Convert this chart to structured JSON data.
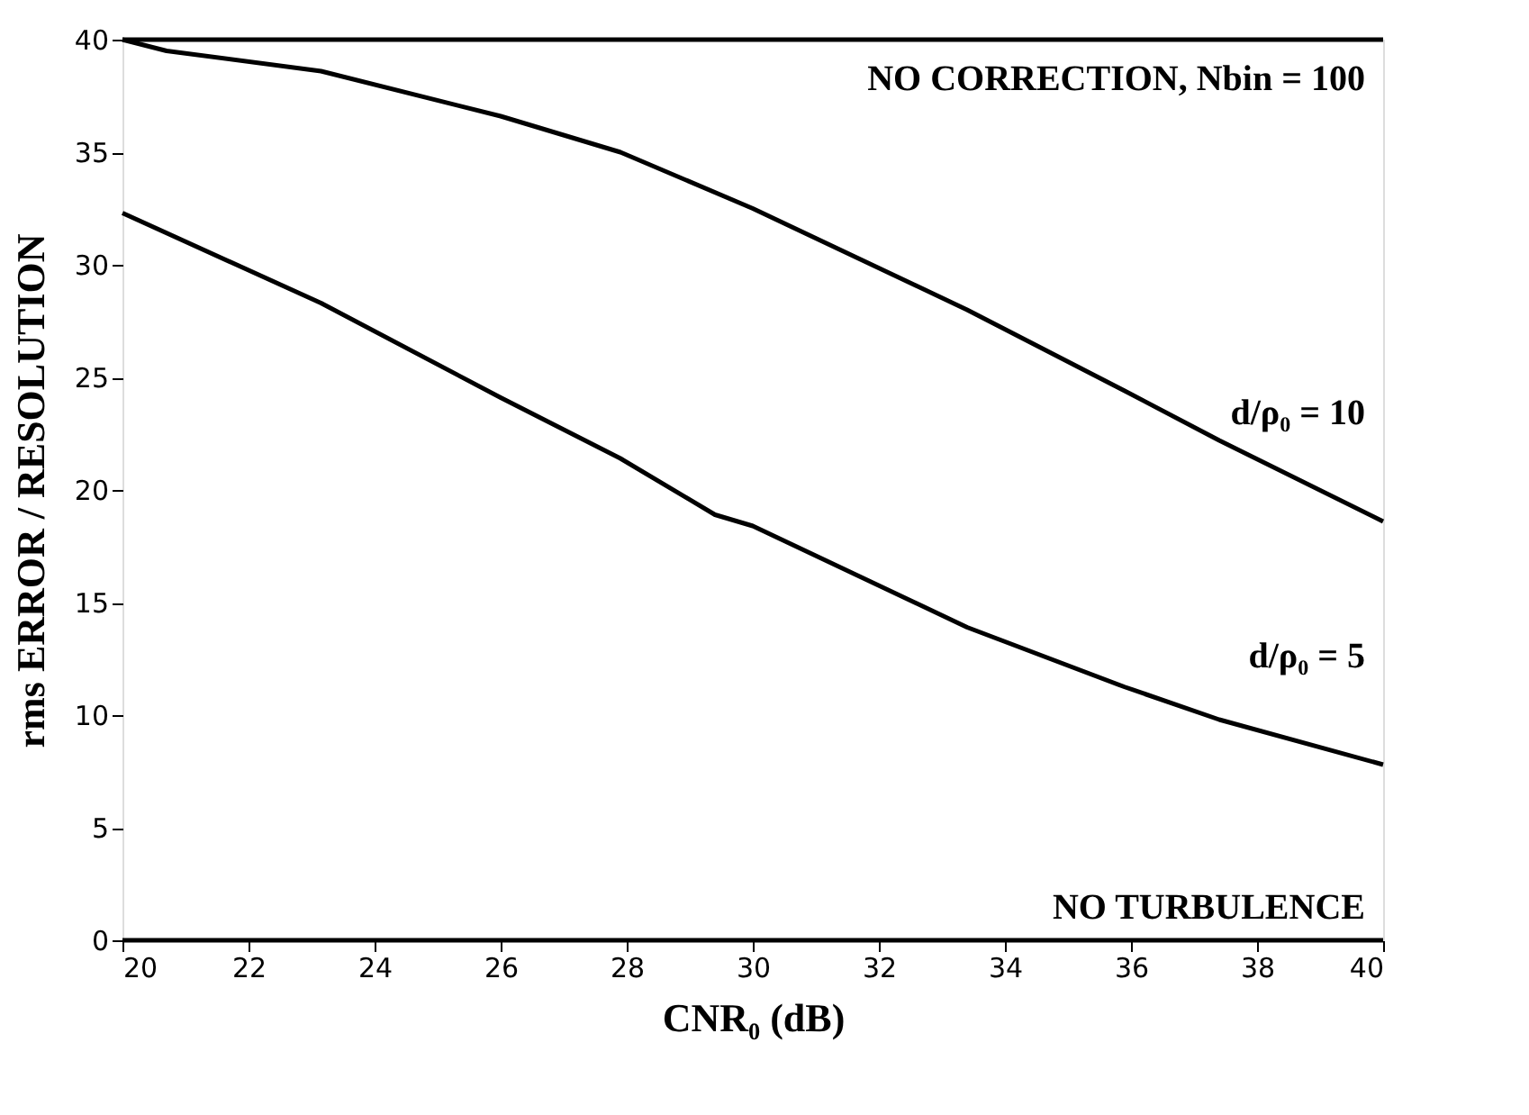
{
  "chart_data": {
    "type": "line",
    "xlabel": "CNR₀ (dB)",
    "ylabel": "rms ERROR / RESOLUTION",
    "xlim": [
      20,
      40
    ],
    "xticks": [
      20,
      22,
      24,
      26,
      28,
      30,
      32,
      34,
      36,
      38,
      40
    ],
    "ylim": [
      0,
      40
    ],
    "yticks": [
      0,
      5,
      10,
      15,
      20,
      25,
      30,
      35,
      40
    ],
    "grid": false,
    "marker": "none",
    "line_style": "solid",
    "series": [
      {
        "name": "NO CORRECTION, Nbin = 100",
        "color": "#000000",
        "x": [
          20,
          40
        ],
        "values": [
          40,
          40
        ]
      },
      {
        "name": "d/ρ₀ = 10",
        "color": "#000000",
        "x": [
          20,
          20.7,
          23.15,
          26.0,
          27.9,
          30.0,
          33.4,
          35.9,
          37.4,
          40
        ],
        "values": [
          40,
          39.5,
          38.6,
          36.6,
          35.0,
          32.5,
          28.0,
          24.4,
          22.2,
          18.6
        ]
      },
      {
        "name": "d/ρ₀ = 5",
        "color": "#000000",
        "x": [
          20,
          23.15,
          26.0,
          27.9,
          29.4,
          30.0,
          33.4,
          35.9,
          37.4,
          40
        ],
        "values": [
          32.3,
          28.3,
          24.1,
          21.4,
          18.9,
          18.4,
          13.9,
          11.25,
          9.8,
          7.8
        ]
      },
      {
        "name": "NO TURBULENCE",
        "color": "#000000",
        "x": [
          20,
          40
        ],
        "values": [
          0,
          0
        ]
      }
    ]
  }
}
